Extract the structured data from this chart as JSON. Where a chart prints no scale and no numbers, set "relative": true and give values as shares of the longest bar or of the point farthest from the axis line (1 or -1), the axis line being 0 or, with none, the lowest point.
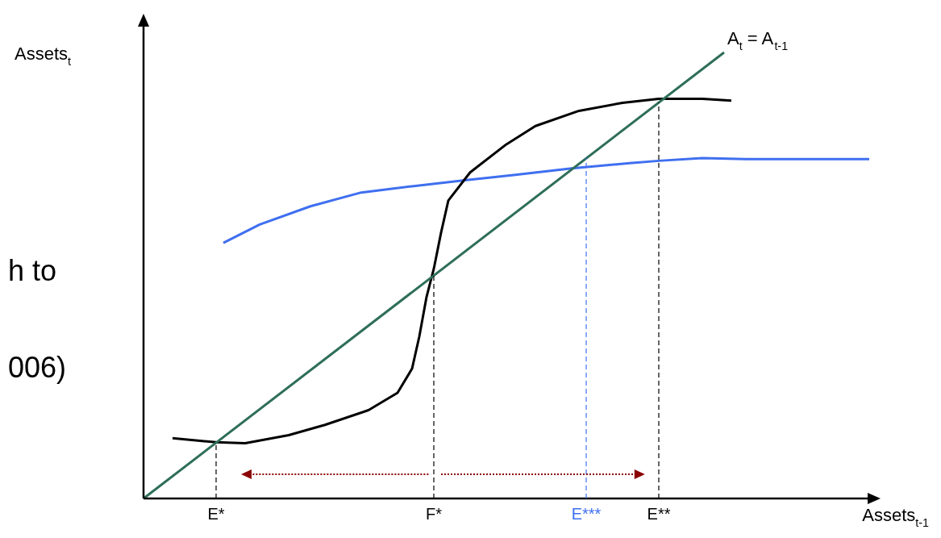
{
  "chart_data": {
    "type": "line",
    "relative": true,
    "xlabel": "Assets$_{t-1}$",
    "ylabel": "Assets$_{t}$",
    "legend": false,
    "line_style": "solid",
    "categories": [
      null,
      null,
      null,
      null,
      null,
      null,
      null,
      null,
      null,
      null,
      "E*",
      null,
      null,
      null,
      null,
      null,
      null,
      null,
      null,
      null,
      null,
      null,
      null,
      null,
      null,
      null,
      null,
      null,
      null,
      null,
      null,
      null,
      null,
      null,
      null,
      null,
      null,
      null,
      null,
      null,
      "F*",
      null,
      null,
      null,
      null,
      null,
      null,
      null,
      null,
      null,
      null,
      null,
      null,
      null,
      null,
      null,
      null,
      null,
      null,
      null,
      null,
      "E***",
      null,
      null,
      null,
      null,
      null,
      null,
      null,
      null,
      null,
      "E**",
      null,
      null,
      null,
      null,
      null,
      null,
      null,
      null,
      null,
      null,
      null,
      null,
      null,
      null,
      null,
      null,
      null,
      null,
      null,
      null,
      null,
      null,
      null,
      null,
      null,
      null,
      null,
      null,
      null
    ],
    "series": [
      {
        "name": "A$_{t}$ = A$_{t-1}$",
        "color": "#2e6e5a",
        "values": [
          0,
          null,
          null,
          null,
          null,
          null,
          null,
          null,
          null,
          null,
          null,
          null,
          null,
          null,
          null,
          null,
          null,
          null,
          null,
          null,
          null,
          null,
          null,
          null,
          null,
          null,
          null,
          null,
          null,
          null,
          null,
          null,
          null,
          null,
          null,
          null,
          null,
          null,
          null,
          null,
          null,
          null,
          null,
          null,
          null,
          null,
          null,
          null,
          null,
          null,
          null,
          null,
          null,
          null,
          null,
          null,
          null,
          null,
          null,
          null,
          null,
          null,
          null,
          null,
          null,
          null,
          null,
          null,
          null,
          null,
          null,
          null,
          null,
          null,
          null,
          null,
          null,
          null,
          null,
          null,
          1,
          null,
          null,
          null,
          null,
          null,
          null,
          null,
          null,
          null,
          null,
          null,
          null,
          null,
          null,
          null,
          null,
          null,
          null,
          null,
          null
        ]
      },
      {
        "color": "#000000",
        "values": [
          null,
          null,
          null,
          null,
          0.135,
          null,
          null,
          null,
          null,
          null,
          0.126,
          null,
          null,
          null,
          0.124,
          null,
          null,
          null,
          null,
          null,
          0.142,
          null,
          null,
          null,
          null,
          0.165,
          null,
          null,
          null,
          null,
          null,
          0.198,
          null,
          null,
          null,
          0.237,
          null,
          0.291,
          0.363,
          0.452,
          0.515,
          0.596,
          0.668,
          null,
          null,
          0.731,
          null,
          null,
          null,
          null,
          0.794,
          null,
          null,
          null,
          0.835,
          null,
          null,
          null,
          null,
          null,
          0.869,
          null,
          null,
          null,
          null,
          null,
          0.887,
          null,
          null,
          null,
          null,
          0.896,
          null,
          null,
          null,
          null,
          null,
          0.896,
          null,
          null,
          null,
          0.892,
          null,
          null,
          null,
          null,
          null,
          null,
          null,
          null,
          null,
          null,
          null,
          null,
          null,
          null,
          null,
          null,
          null,
          null,
          null
        ]
      },
      {
        "color": "#3f6ff0",
        "values": [
          null,
          null,
          null,
          null,
          null,
          null,
          null,
          null,
          null,
          null,
          null,
          0.573,
          null,
          null,
          null,
          null,
          0.614,
          null,
          null,
          null,
          null,
          null,
          null,
          0.655,
          null,
          null,
          null,
          null,
          null,
          null,
          0.686,
          null,
          null,
          null,
          null,
          null,
          null,
          0.7,
          null,
          null,
          null,
          null,
          null,
          null,
          0.713,
          null,
          null,
          null,
          null,
          null,
          null,
          0.725,
          null,
          null,
          null,
          null,
          null,
          null,
          null,
          0.74,
          null,
          null,
          null,
          null,
          null,
          null,
          null,
          0.752,
          null,
          null,
          null,
          0.757,
          null,
          null,
          null,
          null,
          null,
          0.763,
          null,
          null,
          null,
          null,
          null,
          0.761,
          null,
          null,
          null,
          null,
          null,
          null,
          null,
          null,
          null,
          null,
          null,
          null,
          null,
          null,
          null,
          null,
          0.761
        ]
      }
    ],
    "ref_lines": [
      {
        "axis": "x",
        "value": "E*",
        "color": "#000000",
        "line_style": "dashed"
      },
      {
        "axis": "x",
        "value": "F*",
        "color": "#000000",
        "line_style": "dashed"
      },
      {
        "axis": "x",
        "value": "E***",
        "color": "#3f6ff0",
        "line_style": "dashed"
      },
      {
        "axis": "x",
        "value": "E**",
        "color": "#000000",
        "line_style": "dashed"
      }
    ],
    "annotations": [
      "h to",
      "006)"
    ]
  }
}
